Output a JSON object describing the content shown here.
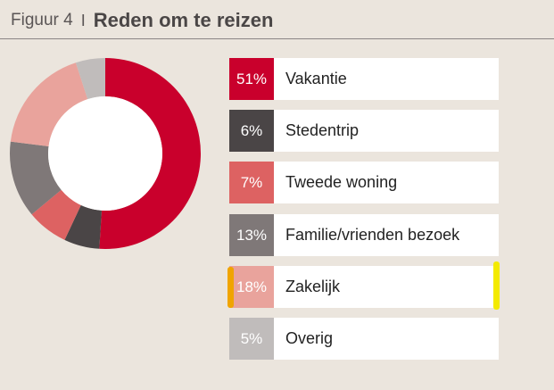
{
  "header": {
    "figure_label": "Figuur 4",
    "separator": "I",
    "title": "Reden om te reizen"
  },
  "chart_data": {
    "type": "pie",
    "title": "Reden om te reizen",
    "donut": true,
    "start_angle_deg": 0,
    "direction": "clockwise",
    "slices": [
      {
        "label": "Vakantie",
        "value": 51,
        "value_label": "51%",
        "color": "#c9002c"
      },
      {
        "label": "Stedentrip",
        "value": 6,
        "value_label": "6%",
        "color": "#4a4546"
      },
      {
        "label": "Tweede woning",
        "value": 7,
        "value_label": "7%",
        "color": "#dd6262"
      },
      {
        "label": "Familie/vrienden bezoek",
        "value": 13,
        "value_label": "13%",
        "color": "#7f7878"
      },
      {
        "label": "Zakelijk",
        "value": 18,
        "value_label": "18%",
        "color": "#e9a39c"
      },
      {
        "label": "Overig",
        "value": 5,
        "value_label": "5%",
        "color": "#c0bcbb"
      }
    ],
    "legend_placement": "right"
  },
  "colors": {
    "background": "#ebe5dd",
    "highlight_left": "#f0a400",
    "highlight_right": "#f3ea00"
  }
}
